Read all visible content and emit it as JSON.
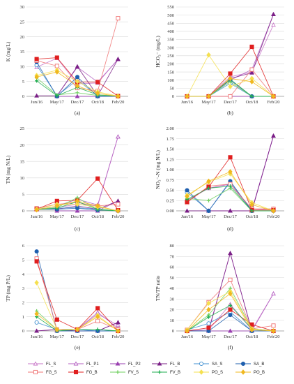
{
  "chart_data": [
    {
      "type": "line",
      "panel": "(a)",
      "ylabel": "K (mg/L)",
      "ylim": [
        0,
        30
      ],
      "yticks": [
        0,
        5,
        10,
        15,
        20,
        25,
        30
      ],
      "ytick_labels": [
        "0",
        "5",
        "10",
        "15",
        "20",
        "25",
        "30"
      ],
      "categories": [
        "Jun/16",
        "May/17",
        "Dec/17",
        "Oct/18",
        "Feb/20"
      ],
      "grid": true,
      "series": [
        {
          "name": "FL_S",
          "values": [
            9.8,
            12.8,
            4.2,
            4.5,
            12.5
          ]
        },
        {
          "name": "FL_P1",
          "values": [
            null,
            0.2,
            9.8,
            4.8,
            12.4
          ]
        },
        {
          "name": "FL_P2",
          "values": [
            null,
            0.0,
            0.0,
            0.0,
            0.0
          ]
        },
        {
          "name": "FL_B",
          "values": [
            0.2,
            0.2,
            10.0,
            0.2,
            12.5
          ]
        },
        {
          "name": "SA_S",
          "values": [
            10.5,
            0.2,
            5.5,
            0.2,
            0.1
          ]
        },
        {
          "name": "SA_B",
          "values": [
            11.5,
            0.0,
            6.5,
            0.0,
            0.0
          ]
        },
        {
          "name": "FG_S",
          "values": [
            12.0,
            10.2,
            2.8,
            1.8,
            26.2
          ]
        },
        {
          "name": "FG_B",
          "values": [
            12.5,
            13.0,
            4.8,
            4.8,
            0.1
          ]
        },
        {
          "name": "FV_S",
          "values": [
            6.2,
            0.5,
            1.2,
            0.3,
            0.1
          ]
        },
        {
          "name": "FV_B",
          "values": [
            5.2,
            0.2,
            3.0,
            0.5,
            0.1
          ]
        },
        {
          "name": "PO_S",
          "values": [
            7.0,
            8.8,
            5.0,
            1.5,
            0.1
          ]
        },
        {
          "name": "PO_B",
          "values": [
            6.5,
            8.2,
            3.5,
            1.0,
            0.0
          ]
        }
      ]
    },
    {
      "type": "line",
      "panel": "(b)",
      "ylabel": "HCO₃⁻ (mg/L)",
      "ylim": [
        0,
        550
      ],
      "yticks": [
        0,
        50,
        100,
        150,
        200,
        250,
        300,
        350,
        400,
        450,
        500,
        550
      ],
      "ytick_labels": [
        "0",
        "50",
        "100",
        "150",
        "200",
        "250",
        "300",
        "350",
        "400",
        "450",
        "500",
        "550"
      ],
      "categories": [
        "Jun/16",
        "May/17",
        "Dec/17",
        "Oct/18",
        "Feb/20"
      ],
      "grid": true,
      "series": [
        {
          "name": "FL_S",
          "values": [
            0,
            0,
            120,
            150,
            440
          ]
        },
        {
          "name": "FL_P1",
          "values": [
            null,
            0,
            100,
            165,
            505
          ]
        },
        {
          "name": "FL_P2",
          "values": [
            null,
            0,
            0,
            0,
            0
          ]
        },
        {
          "name": "FL_B",
          "values": [
            0,
            0,
            110,
            145,
            505
          ]
        },
        {
          "name": "SA_S",
          "values": [
            0,
            0,
            80,
            0,
            0
          ]
        },
        {
          "name": "SA_B",
          "values": [
            0,
            0,
            100,
            0,
            0
          ]
        },
        {
          "name": "FG_S",
          "values": [
            0,
            0,
            0,
            165,
            0
          ]
        },
        {
          "name": "FG_B",
          "values": [
            0,
            0,
            140,
            305,
            0
          ]
        },
        {
          "name": "FV_S",
          "values": [
            0,
            0,
            90,
            0,
            0
          ]
        },
        {
          "name": "FV_B",
          "values": [
            0,
            0,
            105,
            0,
            0
          ]
        },
        {
          "name": "PO_S",
          "values": [
            0,
            255,
            60,
            110,
            0
          ]
        },
        {
          "name": "PO_B",
          "values": [
            0,
            0,
            110,
            90,
            0
          ]
        }
      ]
    },
    {
      "type": "line",
      "panel": "(c)",
      "ylabel": "TN (mg N/L)",
      "ylim": [
        0,
        25
      ],
      "yticks": [
        0,
        5,
        10,
        15,
        20,
        25
      ],
      "ytick_labels": [
        "0",
        "5",
        "10",
        "15",
        "20",
        "25"
      ],
      "categories": [
        "Jun/16",
        "May/17",
        "Dec/17",
        "Oct/18",
        "Feb/20"
      ],
      "grid": true,
      "series": [
        {
          "name": "FL_S",
          "values": [
            0.5,
            1.0,
            2.0,
            1.5,
            22.5
          ]
        },
        {
          "name": "FL_P1",
          "values": [
            null,
            1.5,
            3.5,
            1.8,
            22.5
          ]
        },
        {
          "name": "FL_P2",
          "values": [
            null,
            0.0,
            0.0,
            0.0,
            3.0
          ]
        },
        {
          "name": "FL_B",
          "values": [
            0.5,
            0.5,
            1.5,
            0.5,
            3.0
          ]
        },
        {
          "name": "SA_S",
          "values": [
            0.8,
            0.8,
            1.0,
            0.5,
            0.0
          ]
        },
        {
          "name": "SA_B",
          "values": [
            0.5,
            0.5,
            0.8,
            0.2,
            0.0
          ]
        },
        {
          "name": "FG_S",
          "values": [
            0.8,
            2.0,
            2.5,
            1.5,
            2.0
          ]
        },
        {
          "name": "FG_B",
          "values": [
            0.5,
            3.0,
            3.2,
            9.8,
            0.2
          ]
        },
        {
          "name": "FV_S",
          "values": [
            0.5,
            1.0,
            4.0,
            0.3,
            0.0
          ]
        },
        {
          "name": "FV_B",
          "values": [
            0.3,
            0.8,
            2.8,
            0.5,
            0.0
          ]
        },
        {
          "name": "PO_S",
          "values": [
            0.5,
            2.0,
            2.0,
            1.2,
            0.0
          ]
        },
        {
          "name": "PO_B",
          "values": [
            0.3,
            1.5,
            3.0,
            1.5,
            0.0
          ]
        }
      ]
    },
    {
      "type": "line",
      "panel": "(d)",
      "ylabel": "NO₃⁻-N (mg N/L)",
      "ylim": [
        0,
        2
      ],
      "yticks": [
        0,
        0.25,
        0.5,
        0.75,
        1.0,
        1.25,
        1.5,
        1.75,
        2.0
      ],
      "ytick_labels": [
        "0.00",
        "0.25",
        "0.50",
        "0.75",
        "1.00",
        "1.25",
        "1.50",
        "1.75",
        "2.00"
      ],
      "categories": [
        "Jun/16",
        "May/17",
        "Dec/17",
        "Oct/18",
        "Feb/20"
      ],
      "grid": true,
      "series": [
        {
          "name": "FL_S",
          "values": [
            0.25,
            0.55,
            0.65,
            0.02,
            0.05
          ]
        },
        {
          "name": "FL_P1",
          "values": [
            null,
            0.55,
            0.65,
            0.02,
            1.82
          ]
        },
        {
          "name": "FL_P2",
          "values": [
            null,
            0.0,
            0.0,
            0.0,
            1.82
          ]
        },
        {
          "name": "FL_B",
          "values": [
            0.0,
            0.0,
            0.0,
            0.0,
            1.82
          ]
        },
        {
          "name": "SA_S",
          "values": [
            0.45,
            0.0,
            0.7,
            0.0,
            0.0
          ]
        },
        {
          "name": "SA_B",
          "values": [
            0.5,
            0.0,
            0.72,
            0.0,
            0.0
          ]
        },
        {
          "name": "FG_S",
          "values": [
            0.2,
            0.6,
            0.65,
            0.05,
            0.05
          ]
        },
        {
          "name": "FG_B",
          "values": [
            0.22,
            0.58,
            1.3,
            0.02,
            0.02
          ]
        },
        {
          "name": "FV_S",
          "values": [
            0.3,
            0.25,
            0.55,
            0.0,
            0.0
          ]
        },
        {
          "name": "FV_B",
          "values": [
            0.28,
            0.55,
            0.6,
            0.0,
            0.0
          ]
        },
        {
          "name": "PO_S",
          "values": [
            0.38,
            0.7,
            0.9,
            0.2,
            0.0
          ]
        },
        {
          "name": "PO_B",
          "values": [
            0.35,
            0.72,
            0.95,
            0.15,
            0.0
          ]
        }
      ]
    },
    {
      "type": "line",
      "panel": "(e)",
      "ylabel": "TP (mg P/L)",
      "ylim": [
        0,
        6
      ],
      "yticks": [
        0,
        1,
        2,
        3,
        4,
        5,
        6
      ],
      "ytick_labels": [
        "0",
        "1",
        "2",
        "3",
        "4",
        "5",
        "6"
      ],
      "categories": [
        "Jun/16",
        "May/17",
        "Dec/17",
        "Oct/18",
        "Feb/20"
      ],
      "grid": true,
      "series": [
        {
          "name": "FL_S",
          "values": [
            0.0,
            0.1,
            0.1,
            1.2,
            0.4
          ]
        },
        {
          "name": "FL_P1",
          "values": [
            null,
            0.1,
            0.1,
            1.3,
            0.2
          ]
        },
        {
          "name": "FL_P2",
          "values": [
            null,
            0.0,
            0.0,
            0.0,
            0.6
          ]
        },
        {
          "name": "FL_B",
          "values": [
            0.0,
            0.1,
            0.0,
            0.0,
            0.6
          ]
        },
        {
          "name": "SA_S",
          "values": [
            0.6,
            0.1,
            0.1,
            0.0,
            0.0
          ]
        },
        {
          "name": "SA_B",
          "values": [
            5.6,
            0.0,
            0.0,
            0.0,
            0.0
          ]
        },
        {
          "name": "FG_S",
          "values": [
            5.1,
            0.1,
            0.1,
            0.7,
            0.1
          ]
        },
        {
          "name": "FG_B",
          "values": [
            4.9,
            0.8,
            0.1,
            1.6,
            0.0
          ]
        },
        {
          "name": "FV_S",
          "values": [
            1.4,
            0.1,
            0.1,
            0.1,
            0.0
          ]
        },
        {
          "name": "FV_B",
          "values": [
            1.0,
            0.0,
            0.1,
            0.1,
            0.0
          ]
        },
        {
          "name": "PO_S",
          "values": [
            3.4,
            0.1,
            0.1,
            1.1,
            0.0
          ]
        },
        {
          "name": "PO_B",
          "values": [
            1.2,
            0.1,
            0.1,
            1.0,
            0.0
          ]
        }
      ]
    },
    {
      "type": "line",
      "panel": "(f)",
      "ylabel": "TN/TP ratio",
      "ylim": [
        0,
        80
      ],
      "yticks": [
        0,
        10,
        20,
        30,
        40,
        50,
        60,
        70,
        80
      ],
      "ytick_labels": [
        "0",
        "10",
        "20",
        "30",
        "40",
        "50",
        "60",
        "70",
        "80"
      ],
      "categories": [
        "Jun/16",
        "May/17",
        "Dec/17",
        "Oct/18",
        "Feb/20"
      ],
      "grid": true,
      "series": [
        {
          "name": "FL_S",
          "values": [
            0,
            1,
            25,
            1,
            35
          ]
        },
        {
          "name": "FL_P1",
          "values": [
            null,
            1,
            73,
            0,
            35
          ]
        },
        {
          "name": "FL_P2",
          "values": [
            null,
            0,
            0,
            0,
            0
          ]
        },
        {
          "name": "FL_B",
          "values": [
            0,
            0,
            73,
            0,
            0
          ]
        },
        {
          "name": "SA_S",
          "values": [
            1,
            7,
            18,
            0,
            0
          ]
        },
        {
          "name": "SA_B",
          "values": [
            0,
            0,
            15,
            0,
            0
          ]
        },
        {
          "name": "FG_S",
          "values": [
            1,
            27,
            48,
            2,
            5
          ]
        },
        {
          "name": "FG_B",
          "values": [
            0,
            3,
            20,
            6,
            0
          ]
        },
        {
          "name": "FV_S",
          "values": [
            0,
            15,
            40,
            2,
            0
          ]
        },
        {
          "name": "FV_B",
          "values": [
            0,
            13,
            24,
            2,
            0
          ]
        },
        {
          "name": "PO_S",
          "values": [
            1,
            26,
            37,
            2,
            0
          ]
        },
        {
          "name": "PO_B",
          "values": [
            0,
            20,
            35,
            1,
            0
          ]
        }
      ]
    }
  ],
  "legend": [
    {
      "name": "FL_S",
      "color": "#c774c7",
      "marker": "triangle-open"
    },
    {
      "name": "FL_P1",
      "color": "#b45fc2",
      "marker": "triangle-open"
    },
    {
      "name": "FL_P2",
      "color": "#9a3fb0",
      "marker": "triangle"
    },
    {
      "name": "FL_B",
      "color": "#7a1f86",
      "marker": "triangle"
    },
    {
      "name": "SA_S",
      "color": "#3f8fd0",
      "marker": "circle-open"
    },
    {
      "name": "SA_B",
      "color": "#1f5fae",
      "marker": "circle"
    },
    {
      "name": "FG_S",
      "color": "#f07474",
      "marker": "square-open"
    },
    {
      "name": "FG_B",
      "color": "#e01f1f",
      "marker": "square"
    },
    {
      "name": "FV_S",
      "color": "#6fcf5f",
      "marker": "plus"
    },
    {
      "name": "FV_B",
      "color": "#1fae4f",
      "marker": "plus"
    },
    {
      "name": "PO_S",
      "color": "#f5e04f",
      "marker": "diamond"
    },
    {
      "name": "PO_B",
      "color": "#f0b81f",
      "marker": "diamond"
    }
  ],
  "captions": [
    "(a)",
    "(b)",
    "(c)",
    "(d)",
    "(e)",
    "(f)"
  ]
}
